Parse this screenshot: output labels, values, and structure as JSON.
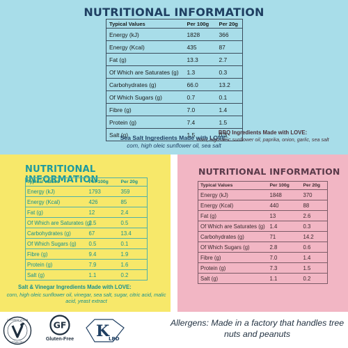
{
  "columns": {
    "name": "Typical Values",
    "per100": "Per 100g",
    "per20": "Per 20g"
  },
  "sea_salt": {
    "title": "NUTRITIONAL INFORMATION",
    "rows": [
      {
        "label": "Energy (kJ)",
        "per100": "1828",
        "per20": "366"
      },
      {
        "label": "Energy (Kcal)",
        "per100": "435",
        "per20": "87"
      },
      {
        "label": "Fat (g)",
        "per100": "13.3",
        "per20": "2.7"
      },
      {
        "label": "Of Which are Saturates (g)",
        "per100": "1.3",
        "per20": "0.3"
      },
      {
        "label": "Carbohydrates (g)",
        "per100": "66.0",
        "per20": "13.2"
      },
      {
        "label": "Of Which Sugars (g)",
        "per100": "0.7",
        "per20": "0.1"
      },
      {
        "label": "Fibre (g)",
        "per100": "7.0",
        "per20": "1.4"
      },
      {
        "label": "Protein (g)",
        "per100": "7.4",
        "per20": "1.5"
      },
      {
        "label": "Salt (g)",
        "per100": "1.5",
        "per20": "0.3"
      }
    ],
    "ingredients_title": "Sea Salt Ingredients Made with LOVE:",
    "ingredients": "corn, high oleic sunflower oil, sea salt"
  },
  "salt_vinegar": {
    "title": "NUTRITIONAL INFORMATION",
    "rows": [
      {
        "label": "Energy (kJ)",
        "per100": "1793",
        "per20": "359"
      },
      {
        "label": "Energy (Kcal)",
        "per100": "426",
        "per20": "85"
      },
      {
        "label": "Fat (g)",
        "per100": "12",
        "per20": "2.4"
      },
      {
        "label": "Of Which are Saturates (g)",
        "per100": "2.5",
        "per20": "0.5"
      },
      {
        "label": "Carbohydrates (g)",
        "per100": "67",
        "per20": "13.4"
      },
      {
        "label": "Of Which Sugars (g)",
        "per100": "0.5",
        "per20": "0.1"
      },
      {
        "label": "Fibre (g)",
        "per100": "9.4",
        "per20": "1.9"
      },
      {
        "label": "Protein (g)",
        "per100": "7.9",
        "per20": "1.6"
      },
      {
        "label": "Salt (g)",
        "per100": "1.1",
        "per20": "0.2"
      }
    ],
    "ingredients_title": "Salt & Vinegar Ingredients Made with LOVE:",
    "ingredients": "corn, high oleic sunflower oil, vinegar, sea salt, sugar, citric acid, malic acid, yeast extract"
  },
  "bbq": {
    "title": "NUTRITIONAL INFORMATION",
    "rows": [
      {
        "label": "Energy (kJ)",
        "per100": "1848",
        "per20": "370"
      },
      {
        "label": "Energy (Kcal)",
        "per100": "440",
        "per20": "88"
      },
      {
        "label": "Fat (g)",
        "per100": "13",
        "per20": "2.6"
      },
      {
        "label": "Of Which are Saturates (g)",
        "per100": "1.4",
        "per20": "0.3"
      },
      {
        "label": "Carbohydrates (g)",
        "per100": "71",
        "per20": "14.2"
      },
      {
        "label": "Of Which Sugars (g)",
        "per100": "2.8",
        "per20": "0.6"
      },
      {
        "label": "Fibre (g)",
        "per100": "7.0",
        "per20": "1.4"
      },
      {
        "label": "Protein (g)",
        "per100": "7.3",
        "per20": "1.5"
      },
      {
        "label": "Salt (g)",
        "per100": "1.1",
        "per20": "0.2"
      }
    ],
    "ingredients_title": "BBQ Ingredients Made with LOVE:",
    "ingredients": "corn, high oleic sunflower oil, paprika, onion, garlic, sea salt"
  },
  "badges": {
    "vegan": "CERTIFIED VEGAN",
    "vegan_site": "VEGAN.ORG",
    "gf_mark": "GF",
    "gf_label": "Gluten-Free",
    "kosher": "LBD"
  },
  "allergens": "Allergens: Made in a factory that handles tree nuts and peanuts",
  "colors": {
    "top_bg": "#a8dde9",
    "left_bg": "#f7e86a",
    "right_bg": "#f2b6c4",
    "navy": "#1f3f62",
    "teal": "#18908f"
  }
}
